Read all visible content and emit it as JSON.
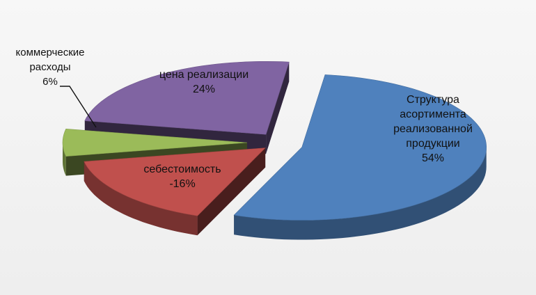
{
  "chart_data": {
    "type": "pie",
    "style": "3d-exploded",
    "slices": [
      {
        "label_lines": [
          "Структура",
          "асортимента",
          "реализованной",
          "продукции"
        ],
        "value_label": "54%",
        "value": 54,
        "color": "#4f81bd"
      },
      {
        "label_lines": [
          "себестоимость"
        ],
        "value_label": "-16%",
        "value": -16,
        "color": "#c0504d"
      },
      {
        "label_lines": [
          "коммерческие",
          "расходы"
        ],
        "value_label": "6%",
        "value": 6,
        "color": "#9bbb59"
      },
      {
        "label_lines": [
          "цена реализации"
        ],
        "value_label": "24%",
        "value": 24,
        "color": "#8064a2"
      }
    ],
    "legend": "none"
  }
}
